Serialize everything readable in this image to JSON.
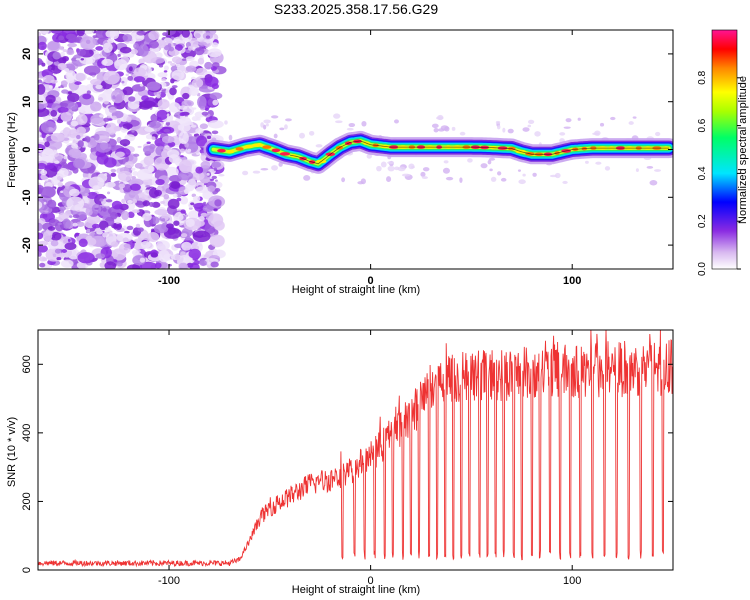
{
  "title": "S233.2025.358.17.56.G29",
  "chart_data": [
    {
      "type": "heatmap",
      "title": "S233.2025.358.17.56.G29",
      "xlabel": "Height of straight line (km)",
      "ylabel": "Frequency (Hz)",
      "xlim": [
        -165,
        150
      ],
      "ylim": [
        -25,
        25
      ],
      "xticks": [
        -100,
        0,
        100
      ],
      "yticks": [
        -20,
        -10,
        0,
        10,
        20
      ],
      "noise_region_x": [
        -165,
        -75
      ],
      "ridge": {
        "x": [
          -78,
          -70,
          -62,
          -55,
          -48,
          -42,
          -36,
          -30,
          -26,
          -20,
          -15,
          -10,
          -5,
          0,
          10,
          20,
          30,
          40,
          50,
          60,
          70,
          75,
          80,
          90,
          100,
          110,
          120,
          130,
          140,
          148
        ],
        "y": [
          0,
          -0.5,
          0.5,
          1,
          0,
          -1,
          -1.5,
          -2.5,
          -3,
          -1,
          0.5,
          1.5,
          1.8,
          1,
          0.5,
          0.5,
          0.5,
          0.5,
          0.5,
          0.4,
          0.2,
          -0.5,
          -1,
          -1,
          0,
          0.3,
          0.3,
          0.3,
          0.3,
          0.3
        ]
      },
      "colorbar": {
        "label": "Normalized spectral amplitude",
        "ticks": [
          0.0,
          0.2,
          0.4,
          0.6,
          0.8
        ],
        "tick_labels": [
          "0.0",
          "0.2",
          "0.4",
          "0.6",
          "0.8"
        ],
        "colors": [
          "#ffffff",
          "#d8b8f0",
          "#8a2be2",
          "#0000ff",
          "#00e5ff",
          "#00ff66",
          "#aaff00",
          "#ffff00",
          "#ff8800",
          "#ff0000",
          "#ff1493"
        ]
      }
    },
    {
      "type": "line",
      "xlabel": "Height of straight line (km)",
      "ylabel": "SNR (10 * v/v)",
      "xlim": [
        -165,
        150
      ],
      "ylim": [
        0,
        700
      ],
      "xticks": [
        -100,
        0,
        100
      ],
      "yticks": [
        0,
        200,
        400,
        600
      ],
      "color": "#ee3333",
      "profile": {
        "x": [
          -165,
          -70,
          -65,
          -60,
          -55,
          -50,
          -40,
          -30,
          -20,
          -10,
          0,
          10,
          20,
          30,
          40,
          60,
          80,
          100,
          120,
          150
        ],
        "y": [
          20,
          20,
          30,
          85,
          150,
          180,
          215,
          250,
          265,
          290,
          330,
          390,
          450,
          530,
          560,
          570,
          575,
          580,
          585,
          590
        ]
      },
      "dropouts": [
        -14,
        -8,
        -3,
        2,
        7,
        11,
        16,
        20,
        24,
        29,
        33,
        37,
        41,
        45,
        49,
        54,
        58,
        62,
        66,
        71,
        75,
        80,
        84,
        89,
        94,
        99,
        104,
        110,
        116,
        122,
        128,
        134,
        140,
        145
      ]
    }
  ],
  "colors": {
    "line": "#ee3333",
    "noise": "#8a2be2",
    "noise_light": "#d8b8f0",
    "axis": "#000000"
  }
}
